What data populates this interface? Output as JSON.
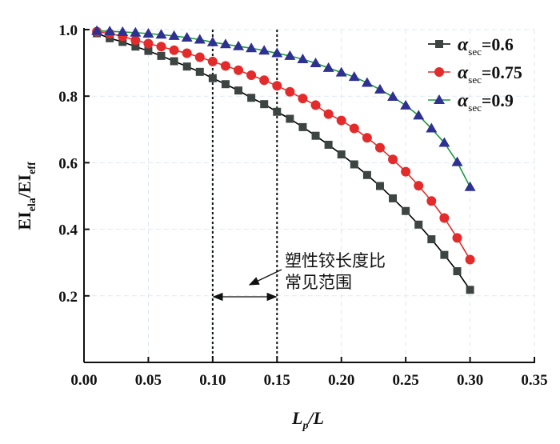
{
  "chart_data": {
    "type": "line",
    "title": "",
    "xlabel": {
      "main": "L",
      "sub": "p",
      "rest": "/L"
    },
    "ylabel": {
      "a": "EI",
      "a_sub": "ela",
      "b": "/EI",
      "b_sub": "eff"
    },
    "xlim": [
      0,
      0.35
    ],
    "ylim": [
      0,
      1.0
    ],
    "xticks": [
      "0.00",
      "0.05",
      "0.10",
      "0.15",
      "0.20",
      "0.25",
      "0.30",
      "0.35"
    ],
    "yticks": [
      "0.2",
      "0.4",
      "0.6",
      "0.8",
      "1.0"
    ],
    "grid": true,
    "legend_position": "top-right",
    "x": [
      0.01,
      0.02,
      0.03,
      0.04,
      0.05,
      0.06,
      0.07,
      0.08,
      0.09,
      0.1,
      0.11,
      0.12,
      0.13,
      0.14,
      0.15,
      0.16,
      0.17,
      0.18,
      0.19,
      0.2,
      0.21,
      0.22,
      0.23,
      0.24,
      0.25,
      0.26,
      0.27,
      0.28,
      0.29,
      0.3
    ],
    "series": [
      {
        "name": "α sec=0.6",
        "symbol": "α",
        "sub": "sec",
        "value_label": "=0.6",
        "marker": "square",
        "color": "#3d4543",
        "line_color": "#000000",
        "values": [
          0.989,
          0.974,
          0.963,
          0.949,
          0.936,
          0.921,
          0.905,
          0.889,
          0.873,
          0.854,
          0.836,
          0.817,
          0.795,
          0.776,
          0.753,
          0.732,
          0.707,
          0.681,
          0.654,
          0.625,
          0.595,
          0.563,
          0.53,
          0.493,
          0.455,
          0.414,
          0.37,
          0.323,
          0.274,
          0.218
        ]
      },
      {
        "name": "α sec=0.75",
        "symbol": "α",
        "sub": "sec",
        "value_label": "=0.75",
        "marker": "circle",
        "color": "#e32b2b",
        "line_color": "#e32b2b",
        "values": [
          0.994,
          0.988,
          0.98,
          0.968,
          0.958,
          0.949,
          0.938,
          0.929,
          0.917,
          0.904,
          0.891,
          0.878,
          0.863,
          0.848,
          0.831,
          0.813,
          0.793,
          0.773,
          0.746,
          0.727,
          0.703,
          0.675,
          0.645,
          0.61,
          0.573,
          0.531,
          0.485,
          0.434,
          0.374,
          0.309
        ]
      },
      {
        "name": "α sec=0.9",
        "symbol": "α",
        "sub": "sec",
        "value_label": "=0.9",
        "marker": "triangle",
        "color": "#2e3192",
        "line_color": "#1a9a3a",
        "values": [
          0.996,
          0.995,
          0.993,
          0.991,
          0.988,
          0.985,
          0.981,
          0.976,
          0.97,
          0.962,
          0.956,
          0.95,
          0.944,
          0.937,
          0.929,
          0.921,
          0.911,
          0.899,
          0.885,
          0.871,
          0.858,
          0.84,
          0.82,
          0.798,
          0.772,
          0.742,
          0.703,
          0.66,
          0.602,
          0.527
        ]
      }
    ],
    "reference_lines_x": [
      0.1,
      0.15
    ],
    "annotation": {
      "line1": "塑性铰长度比",
      "line2": "常见范围",
      "range": [
        0.1,
        0.15
      ]
    }
  }
}
